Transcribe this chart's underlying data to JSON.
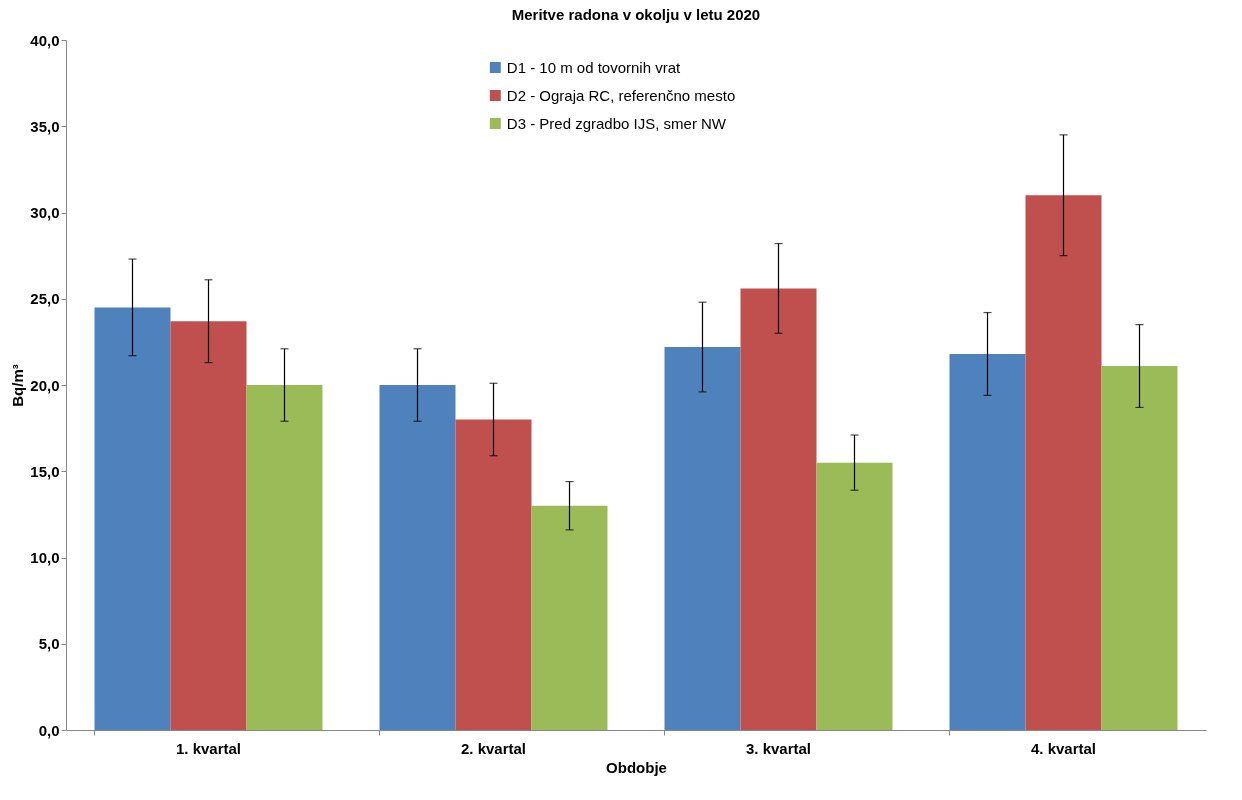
{
  "chart_data": {
    "type": "bar",
    "title": "Meritve radona v okolju v letu 2020",
    "xlabel": "Obdobje",
    "ylabel": "Bq/m³",
    "categories": [
      "1. kvartal",
      "2. kvartal",
      "3. kvartal",
      "4. kvartal"
    ],
    "series": [
      {
        "name": "D1 - 10 m od tovornih vrat",
        "color": "#4f81bd",
        "values": [
          24.5,
          20.0,
          22.2,
          21.8
        ],
        "errors": [
          2.8,
          2.1,
          2.6,
          2.4
        ]
      },
      {
        "name": "D2 - Ograja RC, referenčno mesto",
        "color": "#c0504d",
        "values": [
          23.7,
          18.0,
          25.6,
          31.0
        ],
        "errors": [
          2.4,
          2.1,
          2.6,
          3.5
        ]
      },
      {
        "name": "D3 - Pred zgradbo IJS, smer NW",
        "color": "#9bbb59",
        "values": [
          20.0,
          13.0,
          15.5,
          21.1
        ],
        "errors": [
          2.1,
          1.4,
          1.6,
          2.4
        ]
      }
    ],
    "ylim": [
      0,
      40
    ],
    "yticks": [
      {
        "value": 0,
        "label": "0,0"
      },
      {
        "value": 5,
        "label": "5,0"
      },
      {
        "value": 10,
        "label": "10,0"
      },
      {
        "value": 15,
        "label": "15,0"
      },
      {
        "value": 20,
        "label": "20,0"
      },
      {
        "value": 25,
        "label": "25,0"
      },
      {
        "value": 30,
        "label": "30,0"
      },
      {
        "value": 35,
        "label": "35,0"
      },
      {
        "value": 40,
        "label": "40,0"
      }
    ],
    "grid": false,
    "legend": "top"
  }
}
